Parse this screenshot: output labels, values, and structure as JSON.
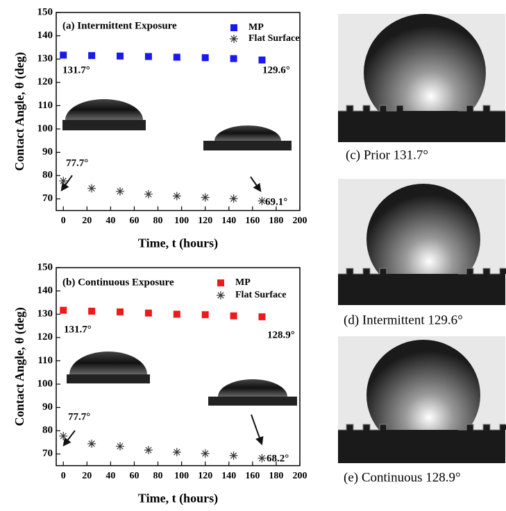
{
  "chart_data": [
    {
      "type": "scatter",
      "title": "(a) Intermittent Exposure",
      "x_label": "Time, t (hours)",
      "y_label": "Contact Angle, θ (deg)",
      "x": [
        0,
        24,
        48,
        72,
        96,
        120,
        144,
        168
      ],
      "series": [
        {
          "name": "MP",
          "color": "#1a1aee",
          "marker": "square",
          "values": [
            131.7,
            131.5,
            131.3,
            131.1,
            130.8,
            130.6,
            130.2,
            129.6
          ]
        },
        {
          "name": "Flat Surface",
          "color": "#333333",
          "marker": "asterisk",
          "values": [
            77.7,
            74.5,
            73.2,
            72.0,
            71.2,
            70.6,
            70.1,
            69.1
          ]
        }
      ],
      "annotations": [
        "131.7°",
        "129.6°",
        "77.7°",
        "69.1°"
      ],
      "xlim": [
        -6,
        200
      ],
      "xticks": [
        0,
        20,
        40,
        60,
        80,
        100,
        120,
        140,
        160,
        180,
        200
      ],
      "ylim": [
        65,
        150
      ],
      "yticks": [
        70,
        80,
        90,
        100,
        110,
        120,
        130,
        140,
        150
      ]
    },
    {
      "type": "scatter",
      "title": "(b) Continuous Exposure",
      "x_label": "Time, t (hours)",
      "y_label": "Contact Angle, θ (deg)",
      "x": [
        0,
        24,
        48,
        72,
        96,
        120,
        144,
        168
      ],
      "series": [
        {
          "name": "MP",
          "color": "#ee1a1a",
          "marker": "square",
          "values": [
            131.7,
            131.3,
            131.0,
            130.5,
            130.0,
            129.8,
            129.3,
            128.9
          ]
        },
        {
          "name": "Flat Surface",
          "color": "#333333",
          "marker": "asterisk",
          "values": [
            77.7,
            74.4,
            73.3,
            71.7,
            70.8,
            70.2,
            69.3,
            68.2
          ]
        }
      ],
      "annotations": [
        "131.7°",
        "128.9°",
        "77.7°",
        "68.2°"
      ],
      "xlim": [
        -6,
        200
      ],
      "xticks": [
        0,
        20,
        40,
        60,
        80,
        100,
        120,
        140,
        160,
        180,
        200
      ],
      "ylim": [
        65,
        150
      ],
      "yticks": [
        70,
        80,
        90,
        100,
        110,
        120,
        130,
        140,
        150
      ]
    }
  ],
  "images": [
    {
      "caption": "(c) Prior 131.7°"
    },
    {
      "caption": "(d) Intermittent 129.6°"
    },
    {
      "caption": "(e) Continuous 128.9°"
    }
  ]
}
